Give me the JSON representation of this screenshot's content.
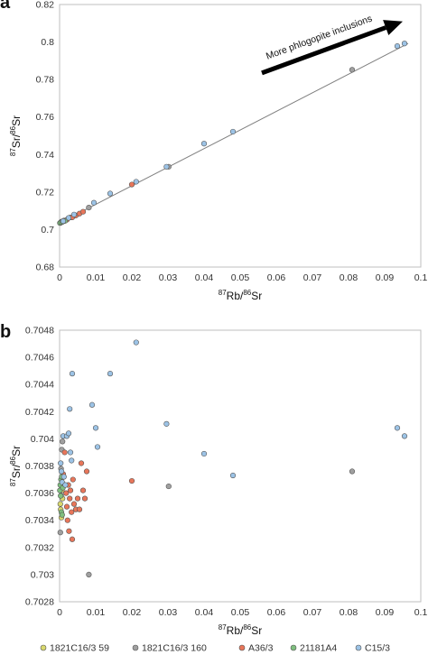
{
  "figure": {
    "panel_letters": [
      "a",
      "b"
    ],
    "annotation": "More phlogopite inclusions",
    "colors": {
      "1821C16/3 59": "#d9d96e",
      "1821C16/3 160": "#a0a0a0",
      "A36/3": "#e8765a",
      "21181A4": "#7fbf7f",
      "C15/3": "#9cc3e6",
      "trendline": "#7f7f7f",
      "arrow": "#000000"
    }
  },
  "legend": {
    "placement": "bottom",
    "items": [
      "1821C16/3 59",
      "1821C16/3 160",
      "A36/3",
      "21181A4",
      "C15/3"
    ]
  },
  "chart_data": [
    {
      "panel": "a",
      "type": "scatter",
      "xlabel": {
        "sup1": "87",
        "base1": "Rb/",
        "sup2": "86",
        "base2": "Sr"
      },
      "ylabel": {
        "sup1": "87",
        "base1": "Sr/",
        "sup2": "86",
        "base2": "Sr"
      },
      "xlim": [
        0,
        0.1
      ],
      "ylim": [
        0.68,
        0.82
      ],
      "xticks": [
        "0",
        "0.01",
        "0.02",
        "0.03",
        "0.04",
        "0.05",
        "0.06",
        "0.07",
        "0.08",
        "0.09",
        "0.1"
      ],
      "yticks": [
        "0.68",
        "0.7",
        "0.72",
        "0.74",
        "0.76",
        "0.78",
        "0.8",
        "0.82"
      ],
      "grid": false,
      "trendline": {
        "x": [
          0,
          0.0965
        ],
        "y": [
          0.7035,
          0.7992
        ]
      },
      "arrow": {
        "from": [
          0.056,
          0.7835
        ],
        "to": [
          0.095,
          0.811
        ]
      },
      "series": [
        {
          "name": "1821C16/3 59",
          "points": [
            [
              0.0003,
              0.7036
            ],
            [
              0.0006,
              0.704
            ],
            [
              0.0009,
              0.7043
            ]
          ]
        },
        {
          "name": "1821C16/3 160",
          "points": [
            [
              0.0005,
              0.7042
            ],
            [
              0.0012,
              0.7048
            ],
            [
              0.003,
              0.7065
            ],
            [
              0.0081,
              0.7117
            ],
            [
              0.0302,
              0.7335
            ],
            [
              0.081,
              0.7852
            ]
          ]
        },
        {
          "name": "A36/3",
          "points": [
            [
              0.002,
              0.7052
            ],
            [
              0.0035,
              0.7065
            ],
            [
              0.0045,
              0.7075
            ],
            [
              0.0055,
              0.7085
            ],
            [
              0.0065,
              0.7095
            ],
            [
              0.02,
              0.724
            ]
          ]
        },
        {
          "name": "21181A4",
          "points": [
            [
              0.0001,
              0.7035
            ],
            [
              0.0004,
              0.7038
            ],
            [
              0.0008,
              0.7041
            ],
            [
              0.0015,
              0.7046
            ]
          ]
        },
        {
          "name": "C15/3",
          "points": [
            [
              0.001,
              0.7045
            ],
            [
              0.0025,
              0.7062
            ],
            [
              0.004,
              0.708
            ],
            [
              0.0095,
              0.7143
            ],
            [
              0.014,
              0.7192
            ],
            [
              0.0212,
              0.7255
            ],
            [
              0.0296,
              0.7335
            ],
            [
              0.04,
              0.7458
            ],
            [
              0.048,
              0.7522
            ],
            [
              0.0935,
              0.7978
            ],
            [
              0.0955,
              0.7992
            ]
          ]
        }
      ]
    },
    {
      "panel": "b",
      "type": "scatter",
      "xlabel": {
        "sup1": "87",
        "base1": "Rb/",
        "sup2": "86",
        "base2": "Sr"
      },
      "ylabel": {
        "sup1": "87",
        "base1": "Sr/",
        "sup2": "86",
        "base2": "Sr"
      },
      "xlim": [
        0,
        0.1
      ],
      "ylim": [
        0.7028,
        0.7048
      ],
      "xticks": [
        "0",
        "0.01",
        "0.02",
        "0.03",
        "0.04",
        "0.05",
        "0.06",
        "0.07",
        "0.08",
        "0.09",
        "0.1"
      ],
      "yticks": [
        "0.7028",
        "0.703",
        "0.7032",
        "0.7034",
        "0.7036",
        "0.7038",
        "0.704",
        "0.7042",
        "0.7044",
        "0.7046",
        "0.7048"
      ],
      "grid": false,
      "series": [
        {
          "name": "1821C16/3 59",
          "points": [
            [
              0.0002,
              0.70352
            ],
            [
              0.0003,
              0.70348
            ],
            [
              0.0004,
              0.70358
            ],
            [
              0.0005,
              0.70342
            ],
            [
              0.0006,
              0.70362
            ],
            [
              0.0008,
              0.70356
            ]
          ]
        },
        {
          "name": "1821C16/3 160",
          "points": [
            [
              0.0002,
              0.70331
            ],
            [
              0.0004,
              0.70378
            ],
            [
              0.0006,
              0.70392
            ],
            [
              0.0008,
              0.70398
            ],
            [
              0.0081,
              0.703
            ],
            [
              0.0302,
              0.70365
            ],
            [
              0.081,
              0.70376
            ]
          ]
        },
        {
          "name": "A36/3",
          "points": [
            [
              0.001,
              0.70374
            ],
            [
              0.0014,
              0.7039
            ],
            [
              0.0018,
              0.7036
            ],
            [
              0.002,
              0.7035
            ],
            [
              0.0022,
              0.7034
            ],
            [
              0.0024,
              0.70366
            ],
            [
              0.0026,
              0.70332
            ],
            [
              0.0028,
              0.70356
            ],
            [
              0.003,
              0.70362
            ],
            [
              0.0033,
              0.70346
            ],
            [
              0.0035,
              0.70326
            ],
            [
              0.0037,
              0.7037
            ],
            [
              0.004,
              0.70352
            ],
            [
              0.0045,
              0.70348
            ],
            [
              0.005,
              0.70356
            ],
            [
              0.0055,
              0.70348
            ],
            [
              0.006,
              0.70382
            ],
            [
              0.0065,
              0.70362
            ],
            [
              0.007,
              0.70356
            ],
            [
              0.0075,
              0.70376
            ],
            [
              0.02,
              0.70369
            ]
          ]
        },
        {
          "name": "21181A4",
          "points": [
            [
              0.0001,
              0.70362
            ],
            [
              0.0002,
              0.70366
            ],
            [
              0.0003,
              0.70358
            ],
            [
              0.0004,
              0.7037
            ],
            [
              0.0005,
              0.70346
            ],
            [
              0.0006,
              0.70372
            ],
            [
              0.0007,
              0.70344
            ],
            [
              0.0009,
              0.70364
            ]
          ]
        },
        {
          "name": "C15/3",
          "points": [
            [
              0.0003,
              0.70382
            ],
            [
              0.0005,
              0.70376
            ],
            [
              0.0007,
              0.70368
            ],
            [
              0.001,
              0.70402
            ],
            [
              0.0012,
              0.70372
            ],
            [
              0.0016,
              0.70366
            ],
            [
              0.002,
              0.70402
            ],
            [
              0.0025,
              0.70404
            ],
            [
              0.0028,
              0.70422
            ],
            [
              0.003,
              0.7039
            ],
            [
              0.0033,
              0.70384
            ],
            [
              0.0035,
              0.70448
            ],
            [
              0.009,
              0.70425
            ],
            [
              0.01,
              0.70408
            ],
            [
              0.0105,
              0.70394
            ],
            [
              0.014,
              0.70448
            ],
            [
              0.0212,
              0.70471
            ],
            [
              0.0296,
              0.70411
            ],
            [
              0.04,
              0.70389
            ],
            [
              0.048,
              0.70373
            ],
            [
              0.0935,
              0.70408
            ],
            [
              0.0955,
              0.70402
            ]
          ]
        }
      ]
    }
  ]
}
